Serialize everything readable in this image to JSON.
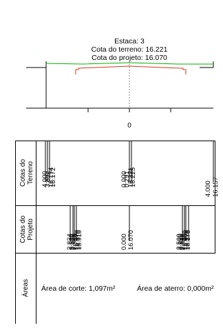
{
  "header": {
    "station": "Estaca: 3",
    "terrain_elevation": "Cota do terreno: 16.221",
    "project_elevation": "Cota do projeto: 16.070"
  },
  "axis": {
    "center_label": "0"
  },
  "rows": [
    {
      "label_line1": "Cotas do",
      "label_line2": "Terreno"
    },
    {
      "label_line1": "Cotas do",
      "label_line2": "Projeto"
    },
    {
      "label_line1": "Áreas"
    }
  ],
  "terrain_values": {
    "left_group": [
      "4.000",
      "3.892",
      "16.174",
      "16.172"
    ],
    "center_group": [
      "0.000",
      "0.291",
      "16.221",
      "16.225"
    ],
    "right_group": [
      "4.000",
      "16.157"
    ]
  },
  "project_values": {
    "left_group": [
      "2.834",
      "2.500",
      "2.526",
      "2.596",
      "15.970",
      "15.970",
      "15.910"
    ],
    "center_group": [
      "0.000",
      "16.070"
    ],
    "right_group": [
      "2.500",
      "2.590",
      "2.636",
      "2.858",
      "15.909",
      "15.978",
      "16.178"
    ]
  },
  "areas": {
    "cut": "Área de corte: 1,097m²",
    "fill": "Área de aterro: 0,000m²"
  },
  "colors": {
    "terrain_line": "#00b000",
    "project_line": "#d23a1e",
    "grid": "#000000"
  }
}
